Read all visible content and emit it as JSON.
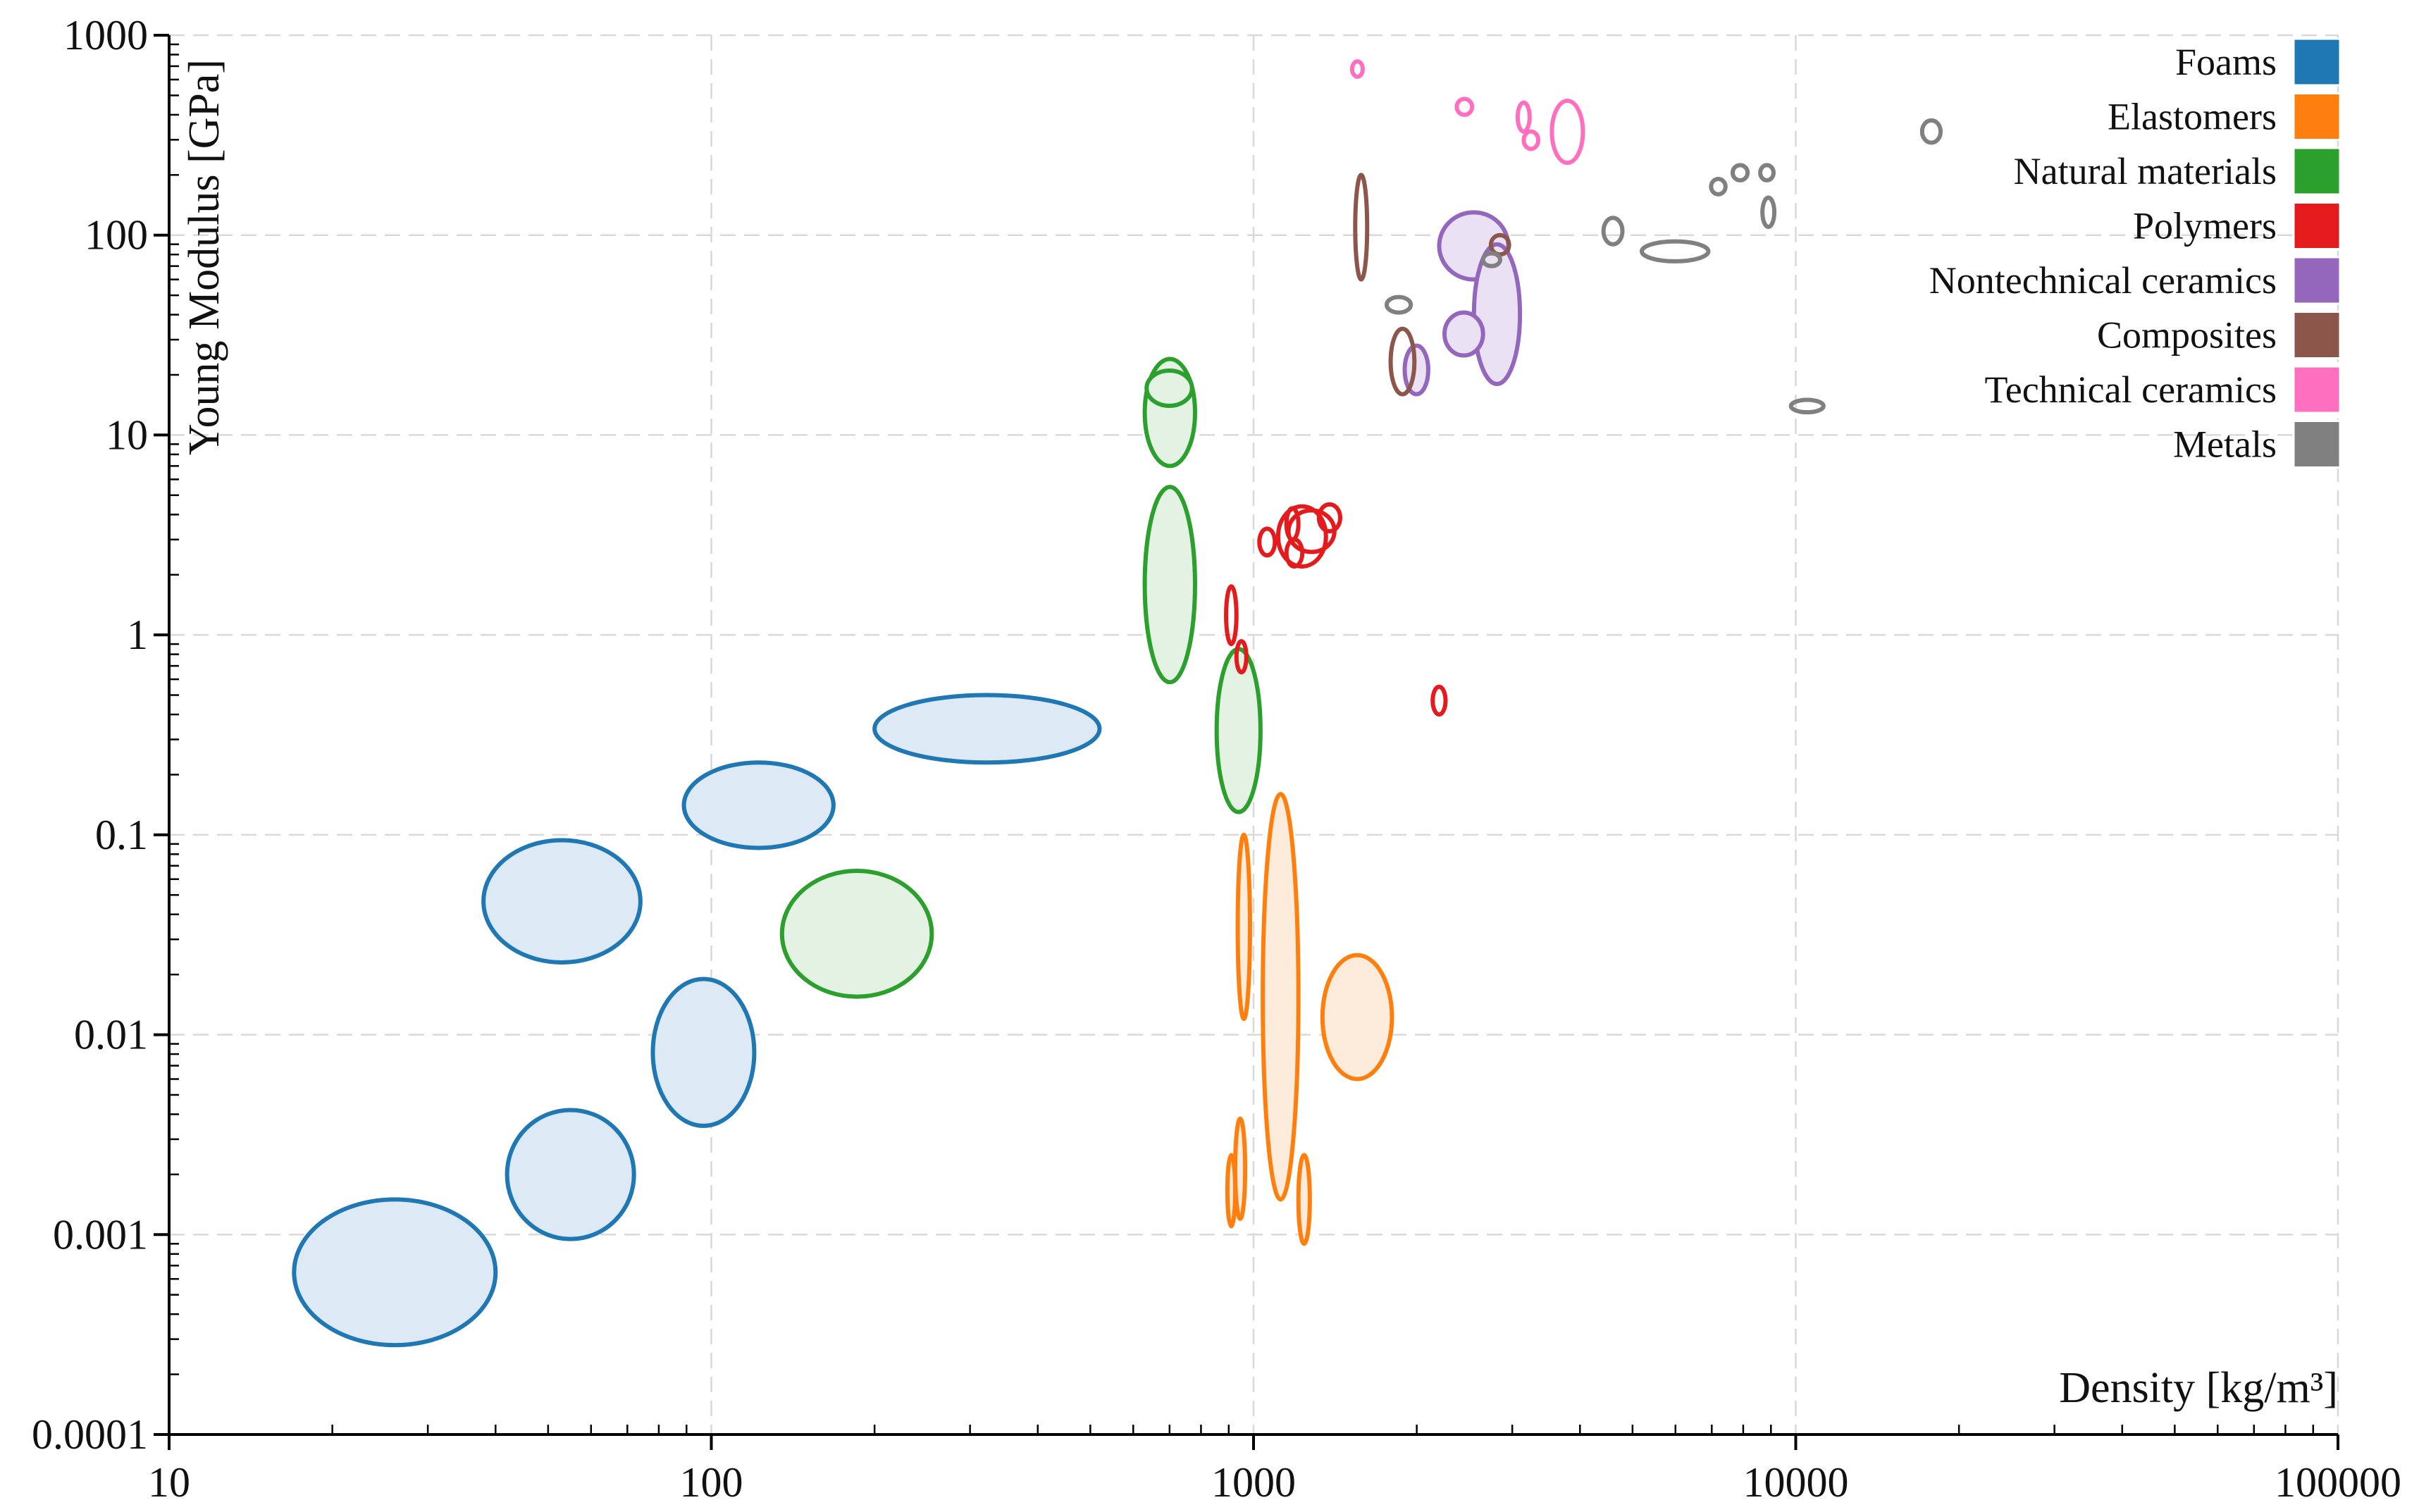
{
  "chart_data": {
    "type": "scatter",
    "subtype": "ashby-ellipse",
    "title": "",
    "xlabel": "Density [kg/m³]",
    "ylabel": "Young Modulus [GPa]",
    "xscale": "log",
    "yscale": "log",
    "xlim": [
      10,
      100000
    ],
    "ylim": [
      0.0001,
      1000
    ],
    "x_ticks": [
      "10",
      "100",
      "1000",
      "10000",
      "100000"
    ],
    "y_ticks": [
      "0.0001",
      "0.001",
      "0.01",
      "0.1",
      "1",
      "10",
      "100",
      "1000"
    ],
    "grid": true,
    "legend_position": "top-right",
    "series": [
      {
        "name": "Foams",
        "color": "#1f77b4",
        "fill": "#ddeaf6",
        "points": [
          {
            "x": 26,
            "y": 0.00065,
            "xrange": [
              17,
              40
            ],
            "yrange": [
              0.00028,
              0.0015
            ]
          },
          {
            "x": 55,
            "y": 0.002,
            "xrange": [
              42,
              72
            ],
            "yrange": [
              0.00095,
              0.0042
            ]
          },
          {
            "x": 97,
            "y": 0.008,
            "xrange": [
              78,
              120
            ],
            "yrange": [
              0.0035,
              0.019
            ]
          },
          {
            "x": 53,
            "y": 0.052,
            "xrange": [
              38,
              74
            ],
            "yrange": [
              0.023,
              0.094
            ]
          },
          {
            "x": 122,
            "y": 0.14,
            "xrange": [
              89,
              168
            ],
            "yrange": [
              0.086,
              0.23
            ]
          },
          {
            "x": 320,
            "y": 0.34,
            "xrange": [
              200,
              520
            ],
            "yrange": [
              0.23,
              0.5
            ]
          }
        ]
      },
      {
        "name": "Elastomers",
        "color": "#ff7f0e",
        "fill": "#fdebdc",
        "points": [
          {
            "x": 960,
            "y": 0.035,
            "xrange": [
              935,
              985
            ],
            "yrange": [
              0.012,
              0.1
            ]
          },
          {
            "x": 1120,
            "y": 0.018,
            "xrange": [
              1040,
              1210
            ],
            "yrange": [
              0.0015,
              0.16
            ]
          },
          {
            "x": 1560,
            "y": 0.0125,
            "xrange": [
              1340,
              1800
            ],
            "yrange": [
              0.006,
              0.025
            ]
          },
          {
            "x": 945,
            "y": 0.0022,
            "xrange": [
              925,
              965
            ],
            "yrange": [
              0.0012,
              0.0038
            ]
          },
          {
            "x": 910,
            "y": 0.0017,
            "xrange": [
              895,
              925
            ],
            "yrange": [
              0.0011,
              0.0025
            ]
          },
          {
            "x": 1240,
            "y": 0.0014,
            "xrange": [
              1210,
              1270
            ],
            "yrange": [
              0.0009,
              0.0025
            ]
          }
        ]
      },
      {
        "name": "Natural materials",
        "color": "#2ca02c",
        "fill": "#e3f2e3",
        "points": [
          {
            "x": 185,
            "y": 0.032,
            "xrange": [
              135,
              255
            ],
            "yrange": [
              0.0155,
              0.066
            ]
          },
          {
            "x": 940,
            "y": 0.33,
            "xrange": [
              855,
              1030
            ],
            "yrange": [
              0.13,
              0.85
            ]
          },
          {
            "x": 700,
            "y": 1.8,
            "xrange": [
              630,
              780
            ],
            "yrange": [
              0.58,
              5.5
            ]
          },
          {
            "x": 700,
            "y": 13,
            "xrange": [
              630,
              780
            ],
            "yrange": [
              7.0,
              24
            ]
          },
          {
            "x": 700,
            "y": 17,
            "xrange": [
              635,
              770
            ],
            "yrange": [
              14,
              21
            ]
          }
        ]
      },
      {
        "name": "Polymers",
        "color": "#e41a1c",
        "fill": "none",
        "points": [
          {
            "x": 1230,
            "y": 3.1,
            "xrange": [
              1110,
              1360
            ],
            "yrange": [
              2.2,
              4.4
            ]
          },
          {
            "x": 1280,
            "y": 3.3,
            "xrange": [
              1160,
              1410
            ],
            "yrange": [
              2.6,
              4.2
            ]
          },
          {
            "x": 1380,
            "y": 3.9,
            "xrange": [
              1320,
              1445
            ],
            "yrange": [
              3.3,
              4.5
            ]
          },
          {
            "x": 1060,
            "y": 2.9,
            "xrange": [
              1025,
              1095
            ],
            "yrange": [
              2.5,
              3.4
            ]
          },
          {
            "x": 1190,
            "y": 2.6,
            "xrange": [
              1150,
              1230
            ],
            "yrange": [
              2.2,
              3.0
            ]
          },
          {
            "x": 1180,
            "y": 3.6,
            "xrange": [
              1150,
              1210
            ],
            "yrange": [
              3.0,
              4.3
            ]
          },
          {
            "x": 910,
            "y": 1.25,
            "xrange": [
              890,
              930
            ],
            "yrange": [
              0.9,
              1.75
            ]
          },
          {
            "x": 950,
            "y": 0.78,
            "xrange": [
              930,
              970
            ],
            "yrange": [
              0.65,
              0.93
            ]
          },
          {
            "x": 2200,
            "y": 0.47,
            "xrange": [
              2140,
              2260
            ],
            "yrange": [
              0.4,
              0.55
            ]
          }
        ]
      },
      {
        "name": "Nontechnical ceramics",
        "color": "#9467bd",
        "fill": "#ebe1f4",
        "points": [
          {
            "x": 2550,
            "y": 88,
            "xrange": [
              2200,
              2950
            ],
            "yrange": [
              60,
              130
            ]
          },
          {
            "x": 2800,
            "y": 40,
            "xrange": [
              2550,
              3100
            ],
            "yrange": [
              18,
              90
            ]
          },
          {
            "x": 2450,
            "y": 32,
            "xrange": [
              2250,
              2650
            ],
            "yrange": [
              25,
              41
            ]
          },
          {
            "x": 2000,
            "y": 21,
            "xrange": [
              1900,
              2100
            ],
            "yrange": [
              16,
              28
            ]
          }
        ]
      },
      {
        "name": "Composites",
        "color": "#8c564b",
        "fill": "none",
        "points": [
          {
            "x": 1580,
            "y": 110,
            "xrange": [
              1540,
              1620
            ],
            "yrange": [
              60,
              200
            ]
          },
          {
            "x": 1880,
            "y": 23,
            "xrange": [
              1790,
              1980
            ],
            "yrange": [
              16,
              34
            ]
          },
          {
            "x": 2850,
            "y": 90,
            "xrange": [
              2740,
              2960
            ],
            "yrange": [
              80,
              100
            ]
          }
        ]
      },
      {
        "name": "Technical ceramics",
        "color": "#ff6fc0",
        "fill": "none",
        "points": [
          {
            "x": 1550,
            "y": 680,
            "xrange": [
              1520,
              1590
            ],
            "yrange": [
              620,
              740
            ]
          },
          {
            "x": 2450,
            "y": 440,
            "xrange": [
              2370,
              2530
            ],
            "yrange": [
              400,
              480
            ]
          },
          {
            "x": 3150,
            "y": 390,
            "xrange": [
              3070,
              3230
            ],
            "yrange": [
              330,
              460
            ]
          },
          {
            "x": 3250,
            "y": 300,
            "xrange": [
              3150,
              3350
            ],
            "yrange": [
              270,
              330
            ]
          },
          {
            "x": 3800,
            "y": 330,
            "xrange": [
              3550,
              4050
            ],
            "yrange": [
              230,
              470
            ]
          }
        ]
      },
      {
        "name": "Metals",
        "color": "#808080",
        "fill": "none",
        "points": [
          {
            "x": 6000,
            "y": 83,
            "xrange": [
              5200,
              6900
            ],
            "yrange": [
              74,
              93
            ]
          },
          {
            "x": 4600,
            "y": 105,
            "xrange": [
              4420,
              4790
            ],
            "yrange": [
              90,
              122
            ]
          },
          {
            "x": 1850,
            "y": 45,
            "xrange": [
              1760,
              1950
            ],
            "yrange": [
              41,
              49
            ]
          },
          {
            "x": 2750,
            "y": 75,
            "xrange": [
              2650,
              2850
            ],
            "yrange": [
              70,
              81
            ]
          },
          {
            "x": 7200,
            "y": 175,
            "xrange": [
              6980,
              7420
            ],
            "yrange": [
              160,
              191
            ]
          },
          {
            "x": 7900,
            "y": 205,
            "xrange": [
              7650,
              8150
            ],
            "yrange": [
              188,
              224
            ]
          },
          {
            "x": 8850,
            "y": 205,
            "xrange": [
              8600,
              9100
            ],
            "yrange": [
              188,
              224
            ]
          },
          {
            "x": 8900,
            "y": 130,
            "xrange": [
              8680,
              9130
            ],
            "yrange": [
              110,
              154
            ]
          },
          {
            "x": 17800,
            "y": 330,
            "xrange": [
              17100,
              18500
            ],
            "yrange": [
              290,
              375
            ]
          },
          {
            "x": 10500,
            "y": 14,
            "xrange": [
              9800,
              11250
            ],
            "yrange": [
              13,
              15
            ]
          }
        ]
      }
    ]
  }
}
